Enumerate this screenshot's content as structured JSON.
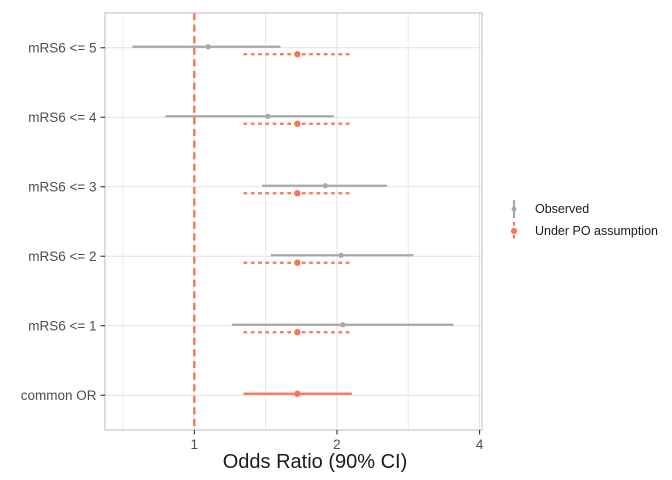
{
  "figure": {
    "background": "#FFFFFF"
  },
  "chart_data": {
    "type": "scatter",
    "subtype": "forest-pointrange",
    "title": "",
    "xlabel": "Odds Ratio (90% CI)",
    "ylabel": "",
    "x_scale": "log2",
    "x_ticks": [
      1,
      2,
      4
    ],
    "x_minor_gridlines": [
      0.707,
      1.414,
      2.828
    ],
    "xlim": [
      0.65,
      4.05
    ],
    "grid": true,
    "categories": [
      "mRS6 <= 5",
      "mRS6 <= 4",
      "mRS6 <= 3",
      "mRS6 <= 2",
      "mRS6 <= 1",
      "common OR"
    ],
    "reference_line": {
      "x": 1,
      "style": "dashed",
      "color": "#F87555"
    },
    "series": [
      {
        "name": "Observed",
        "color": "#A8A8A8",
        "points": [
          {
            "category": "mRS6 <= 5",
            "est": 1.07,
            "lo": 0.74,
            "hi": 1.52,
            "line": "solid"
          },
          {
            "category": "mRS6 <= 4",
            "est": 1.43,
            "lo": 0.87,
            "hi": 1.97,
            "line": "solid"
          },
          {
            "category": "mRS6 <= 3",
            "est": 1.89,
            "lo": 1.39,
            "hi": 2.55,
            "line": "solid"
          },
          {
            "category": "mRS6 <= 2",
            "est": 2.04,
            "lo": 1.45,
            "hi": 2.9,
            "line": "solid"
          },
          {
            "category": "mRS6 <= 1",
            "est": 2.06,
            "lo": 1.2,
            "hi": 3.52,
            "line": "solid"
          }
        ]
      },
      {
        "name": "Under PO assumption",
        "color": "#F87555",
        "points": [
          {
            "category": "mRS6 <= 5",
            "est": 1.65,
            "lo": 1.27,
            "hi": 2.15,
            "line": "dashed"
          },
          {
            "category": "mRS6 <= 4",
            "est": 1.65,
            "lo": 1.27,
            "hi": 2.15,
            "line": "dashed"
          },
          {
            "category": "mRS6 <= 3",
            "est": 1.65,
            "lo": 1.27,
            "hi": 2.15,
            "line": "dashed"
          },
          {
            "category": "mRS6 <= 2",
            "est": 1.65,
            "lo": 1.27,
            "hi": 2.15,
            "line": "dashed"
          },
          {
            "category": "mRS6 <= 1",
            "est": 1.65,
            "lo": 1.27,
            "hi": 2.15,
            "line": "dashed"
          },
          {
            "category": "common OR",
            "est": 1.65,
            "lo": 1.27,
            "hi": 2.15,
            "line": "solid"
          }
        ]
      }
    ],
    "legend": {
      "position": "right",
      "items": [
        {
          "label": "Observed"
        },
        {
          "label": "Under PO assumption"
        }
      ]
    },
    "style": {
      "panel_border": "#C6C6C6",
      "grid_major": "#E2E2E2",
      "grid_minor": "#ECECEC",
      "tick_color": "#333333",
      "axis_text_color": "#4D4D4D",
      "axis_title_color": "#1A1A1A"
    }
  }
}
